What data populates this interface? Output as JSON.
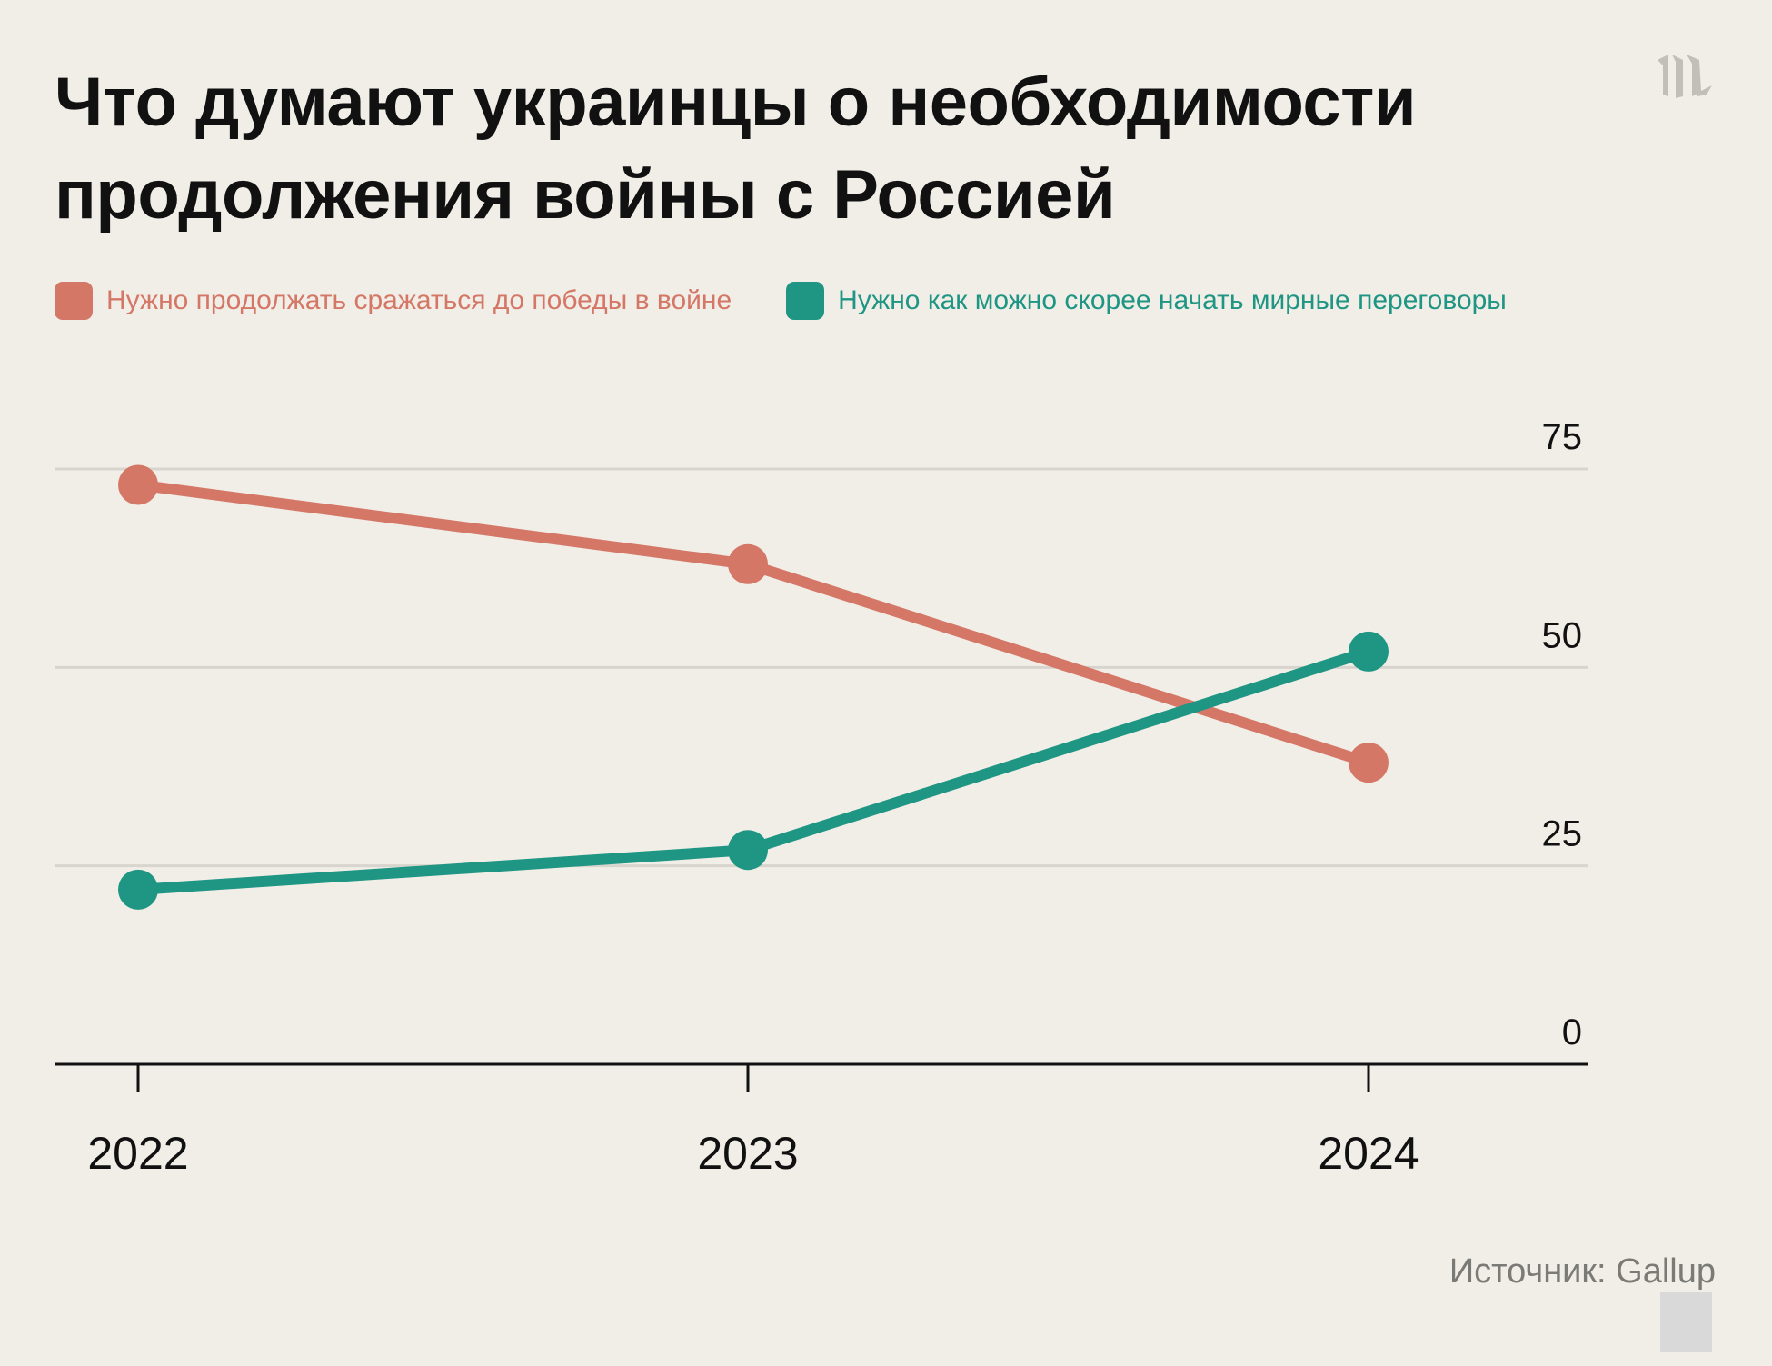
{
  "chart_data": {
    "type": "line",
    "title": "Что думают украинцы о необходимости продолжения войны с Россией",
    "x": [
      "2022",
      "2023",
      "2024"
    ],
    "series": [
      {
        "name": "Нужно продолжать сражаться до победы в войне",
        "values": [
          73,
          63,
          38
        ],
        "color": "#d57767"
      },
      {
        "name": "Нужно как можно скорее начать мирные переговоры",
        "values": [
          22,
          27,
          52
        ],
        "color": "#1f9584"
      }
    ],
    "ylim": [
      0,
      75
    ],
    "yticks": [
      "0",
      "25",
      "50",
      "75"
    ],
    "grid": true,
    "legend_placement": "top-left",
    "source": "Источник: Gallup"
  },
  "logo": "m"
}
